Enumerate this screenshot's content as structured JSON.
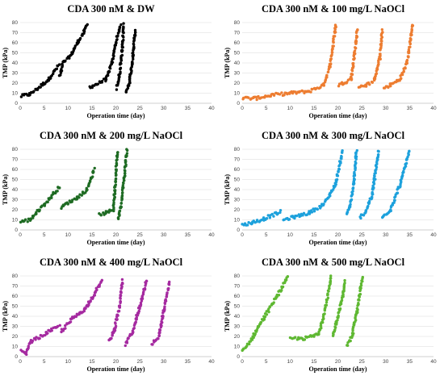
{
  "chart_data": [
    {
      "type": "scatter",
      "title": "CDA 300 nM & DW",
      "xlabel": "Operation time (day)",
      "ylabel": "TMP (kPa)",
      "xlim": [
        0,
        40
      ],
      "ylim": [
        0,
        80
      ],
      "xticks": [
        "0",
        "5",
        "10",
        "15",
        "20",
        "25",
        "30",
        "35",
        "40"
      ],
      "yticks": [
        "0",
        "10",
        "20",
        "30",
        "40",
        "50",
        "60",
        "70",
        "80"
      ],
      "grid": true,
      "color": "#000000",
      "segments": [
        {
          "x": [
            0.2,
            2,
            4,
            6,
            8.1
          ],
          "y": [
            7,
            9,
            16,
            24,
            38
          ]
        },
        {
          "x": [
            8.3,
            9,
            10.5,
            12,
            13.5,
            14
          ],
          "y": [
            27,
            40,
            47,
            60,
            72,
            78
          ]
        },
        {
          "x": [
            14.5,
            16,
            18,
            19.2,
            20,
            21
          ],
          "y": [
            16,
            19,
            24,
            40,
            60,
            78
          ]
        },
        {
          "x": [
            20.2,
            20.8,
            21.4,
            21.6
          ],
          "y": [
            15,
            30,
            55,
            78
          ]
        },
        {
          "x": [
            22.1,
            22.8,
            23.4,
            23.8,
            24.1
          ],
          "y": [
            10,
            20,
            40,
            60,
            73
          ]
        }
      ]
    },
    {
      "type": "scatter",
      "title": "CDA 300 nM & 100 mg/L NaOCl",
      "xlabel": "Operation time (day)",
      "ylabel": "TMP (kPa)",
      "xlim": [
        0,
        40
      ],
      "ylim": [
        0,
        80
      ],
      "xticks": [
        "0",
        "5",
        "10",
        "15",
        "20",
        "25",
        "30",
        "35",
        "40"
      ],
      "yticks": [
        "0",
        "10",
        "20",
        "30",
        "40",
        "50",
        "60",
        "70",
        "80"
      ],
      "grid": true,
      "color": "#ED7D31",
      "segments": [
        {
          "x": [
            0.1,
            3,
            6,
            10,
            14,
            17,
            18.5,
            19.6
          ],
          "y": [
            5,
            5,
            8,
            10,
            12,
            18,
            40,
            78
          ]
        },
        {
          "x": [
            20.1,
            21.5,
            22.8,
            23.5,
            24.1
          ],
          "y": [
            18,
            21,
            24,
            50,
            73
          ]
        },
        {
          "x": [
            24.5,
            26,
            27.5,
            28.8,
            29.3
          ],
          "y": [
            17,
            18,
            22,
            45,
            72
          ]
        },
        {
          "x": [
            29.6,
            31,
            33,
            34.5,
            35.6
          ],
          "y": [
            15,
            18,
            24,
            40,
            78
          ]
        }
      ]
    },
    {
      "type": "scatter",
      "title": "CDA 300 nM & 200 mg/L NaOCl",
      "xlabel": "Operation time (day)",
      "ylabel": "TMP (kPa)",
      "xlim": [
        0,
        40
      ],
      "ylim": [
        0,
        80
      ],
      "xticks": [
        "0",
        "5",
        "10",
        "15",
        "20",
        "25",
        "30",
        "35",
        "40"
      ],
      "yticks": [
        "0",
        "10",
        "20",
        "30",
        "40",
        "50",
        "60",
        "70",
        "80"
      ],
      "grid": true,
      "color": "#1E6B23",
      "segments": [
        {
          "x": [
            0.1,
            2,
            4,
            6,
            8.2
          ],
          "y": [
            8,
            10,
            20,
            30,
            43
          ]
        },
        {
          "x": [
            8.5,
            10,
            12,
            14,
            15.5
          ],
          "y": [
            22,
            27,
            32,
            40,
            60
          ]
        },
        {
          "x": [
            16.5,
            18,
            19.5,
            20.3
          ],
          "y": [
            15,
            17,
            20,
            78
          ]
        },
        {
          "x": [
            20.5,
            21,
            21.7,
            22.3
          ],
          "y": [
            10,
            22,
            50,
            79
          ]
        }
      ]
    },
    {
      "type": "scatter",
      "title": "CDA 300 nM & 300 mg/L NaOCl",
      "xlabel": "Operation time (day)",
      "ylabel": "TMP (kPa)",
      "xlim": [
        0,
        40
      ],
      "ylim": [
        0,
        80
      ],
      "xticks": [
        "0",
        "5",
        "10",
        "15",
        "20",
        "25",
        "30",
        "35",
        "40"
      ],
      "yticks": [
        "0",
        "10",
        "20",
        "30",
        "40",
        "50",
        "60",
        "70",
        "80"
      ],
      "grid": true,
      "color": "#1DA1DC",
      "segments": [
        {
          "x": [
            0.1,
            2,
            4.5,
            7,
            8.1
          ],
          "y": [
            5,
            7,
            11,
            16,
            18
          ]
        },
        {
          "x": [
            8.6,
            11,
            14,
            17,
            19.5,
            21
          ],
          "y": [
            10,
            13,
            17,
            25,
            45,
            78
          ]
        },
        {
          "x": [
            21.8,
            22.5,
            23.3,
            23.9
          ],
          "y": [
            16,
            22,
            45,
            78
          ]
        },
        {
          "x": [
            24.6,
            25.8,
            27.2,
            28.5
          ],
          "y": [
            12,
            18,
            35,
            78
          ]
        },
        {
          "x": [
            29.3,
            31,
            33,
            35
          ],
          "y": [
            12,
            20,
            45,
            78
          ]
        }
      ]
    },
    {
      "type": "scatter",
      "title": "CDA 300 nM & 400 mg/L NaOCl",
      "xlabel": "Operation time (day)",
      "ylabel": "TMP (kPa)",
      "xlim": [
        0,
        40
      ],
      "ylim": [
        0,
        80
      ],
      "xticks": [
        "0",
        "5",
        "10",
        "15",
        "20",
        "25",
        "30",
        "35",
        "40"
      ],
      "yticks": [
        "0",
        "10",
        "20",
        "30",
        "40",
        "50",
        "60",
        "70",
        "80"
      ],
      "grid": true,
      "color": "#A52AA0",
      "segments": [
        {
          "x": [
            0.1,
            1.2,
            2.2,
            4,
            6,
            8.2
          ],
          "y": [
            5,
            3,
            15,
            19,
            25,
            30
          ]
        },
        {
          "x": [
            8.6,
            11,
            13.5,
            15.5,
            17
          ],
          "y": [
            25,
            38,
            47,
            62,
            75
          ]
        },
        {
          "x": [
            18.6,
            19.6,
            20.8,
            21.4
          ],
          "y": [
            15,
            25,
            50,
            75
          ]
        },
        {
          "x": [
            22,
            23.5,
            25,
            26.4
          ],
          "y": [
            12,
            25,
            50,
            75
          ]
        },
        {
          "x": [
            27.5,
            29,
            30,
            31.2
          ],
          "y": [
            12,
            20,
            45,
            74
          ]
        }
      ]
    },
    {
      "type": "scatter",
      "title": "CDA 300 nM & 500 mg/L NaOCl",
      "xlabel": "Operation time (day)",
      "ylabel": "TMP (kPa)",
      "xlim": [
        0,
        40
      ],
      "ylim": [
        0,
        80
      ],
      "xticks": [
        "0",
        "5",
        "10",
        "15",
        "20",
        "25",
        "30",
        "35",
        "40"
      ],
      "yticks": [
        "0",
        "10",
        "20",
        "30",
        "40",
        "50",
        "60",
        "70",
        "80"
      ],
      "grid": true,
      "color": "#5FB832",
      "segments": [
        {
          "x": [
            0.1,
            2,
            4.5,
            7,
            9.5
          ],
          "y": [
            5,
            18,
            38,
            58,
            78
          ]
        },
        {
          "x": [
            10.1,
            13,
            16,
            17.5,
            18.6
          ],
          "y": [
            18,
            18,
            22,
            50,
            79
          ]
        },
        {
          "x": [
            19,
            20,
            21,
            21.5
          ],
          "y": [
            20,
            40,
            60,
            75
          ]
        },
        {
          "x": [
            21.8,
            23,
            24,
            25.1
          ],
          "y": [
            10,
            20,
            45,
            78
          ]
        }
      ]
    }
  ]
}
